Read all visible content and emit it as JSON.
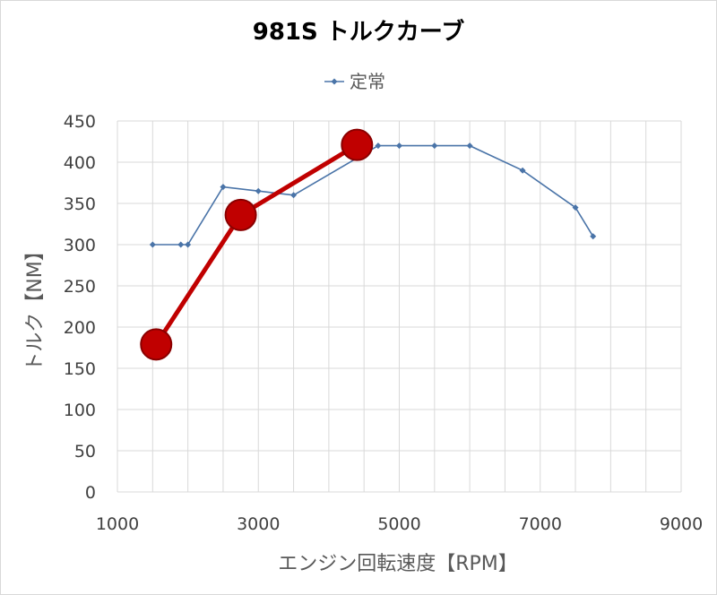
{
  "chart_data": {
    "type": "line",
    "title": "981S トルクカーブ",
    "xlabel": "エンジン回転速度【RPM】",
    "ylabel": "トルク【NM】",
    "xlim": [
      1000,
      9000
    ],
    "ylim": [
      0,
      450
    ],
    "x_ticks": [
      "1000",
      "3000",
      "5000",
      "7000",
      "9000"
    ],
    "y_ticks": [
      "0",
      "50",
      "100",
      "150",
      "200",
      "250",
      "300",
      "350",
      "400",
      "450"
    ],
    "grid": true,
    "legend_position": "top",
    "series": [
      {
        "name": "定常",
        "color": "#4a74a8",
        "x": [
          1500,
          1900,
          2000,
          2500,
          3000,
          3500,
          4700,
          5000,
          5500,
          6000,
          6750,
          7500,
          7750
        ],
        "y": [
          300,
          300,
          300,
          370,
          365,
          360,
          420,
          420,
          420,
          420,
          390,
          345,
          310
        ]
      },
      {
        "name": "",
        "color": "#c00000",
        "x": [
          1550,
          2750,
          4400
        ],
        "y": [
          179,
          336,
          421
        ]
      }
    ]
  }
}
